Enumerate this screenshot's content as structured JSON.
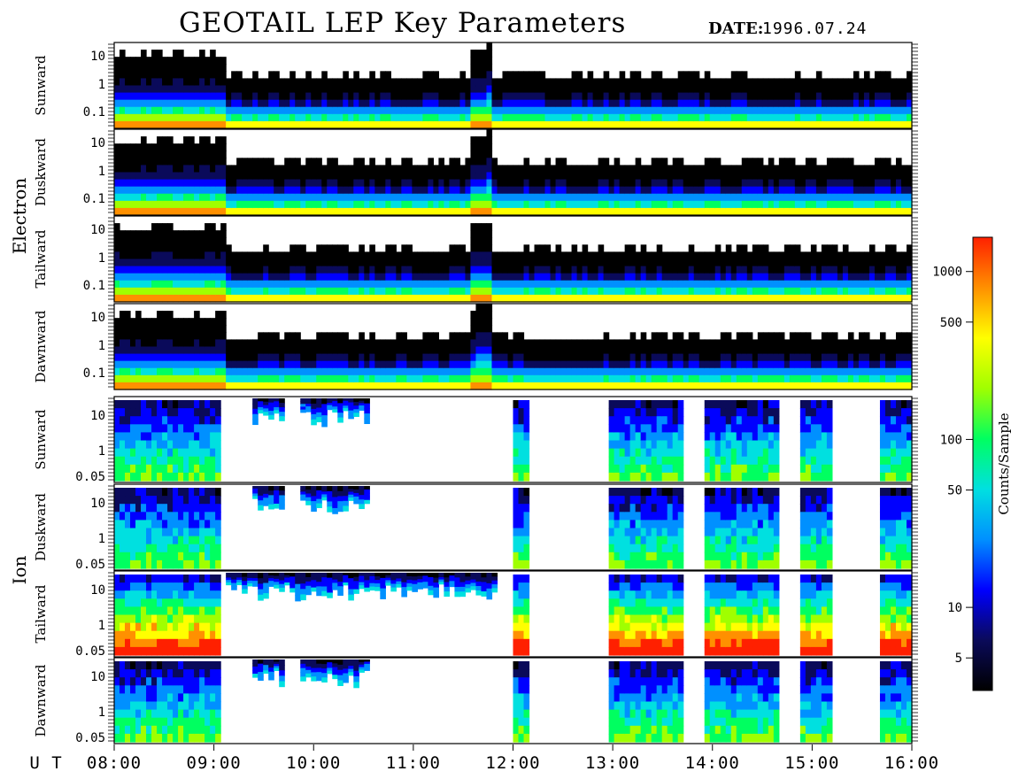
{
  "header": {
    "title": "GEOTAIL LEP Key Parameters",
    "date_label": "DATE:",
    "date_value": "1996.07.24"
  },
  "groups": [
    {
      "label": "Electron",
      "panels": [
        0,
        1,
        2,
        3
      ]
    },
    {
      "label": "Ion",
      "panels": [
        4,
        5,
        6,
        7
      ]
    }
  ],
  "chart_data": {
    "type": "heatmap",
    "x_axis": {
      "unit_label": "U T",
      "range": [
        "08:00",
        "16:00"
      ],
      "ticks": [
        "08:00",
        "09:00",
        "10:00",
        "11:00",
        "12:00",
        "13:00",
        "14:00",
        "15:00",
        "16:00"
      ]
    },
    "panels": [
      {
        "species": "Electron",
        "direction": "Sunward",
        "y_ticks": [
          "10",
          "1",
          "0.1"
        ],
        "y_values": [
          10,
          1,
          0.1
        ],
        "y_scale": "log"
      },
      {
        "species": "Electron",
        "direction": "Duskward",
        "y_ticks": [
          "10",
          "1",
          "0.1"
        ],
        "y_values": [
          10,
          1,
          0.1
        ],
        "y_scale": "log"
      },
      {
        "species": "Electron",
        "direction": "Tailward",
        "y_ticks": [
          "10",
          "1",
          "0.1"
        ],
        "y_values": [
          10,
          1,
          0.1
        ],
        "y_scale": "log"
      },
      {
        "species": "Electron",
        "direction": "Dawnward",
        "y_ticks": [
          "10",
          "1",
          "0.1"
        ],
        "y_values": [
          10,
          1,
          0.1
        ],
        "y_scale": "log"
      },
      {
        "species": "Ion",
        "direction": "Sunward",
        "y_ticks": [
          "10",
          "1",
          "0.05"
        ],
        "y_values": [
          10,
          1,
          0.05
        ],
        "y_scale": "log"
      },
      {
        "species": "Ion",
        "direction": "Duskward",
        "y_ticks": [
          "10",
          "1",
          "0.05"
        ],
        "y_values": [
          10,
          1,
          0.05
        ],
        "y_scale": "log"
      },
      {
        "species": "Ion",
        "direction": "Tailward",
        "y_ticks": [
          "10",
          "1",
          "0.05"
        ],
        "y_values": [
          10,
          1,
          0.05
        ],
        "y_scale": "log"
      },
      {
        "species": "Ion",
        "direction": "Dawnward",
        "y_ticks": [
          "10",
          "1",
          "0.05"
        ],
        "y_values": [
          10,
          1,
          0.05
        ],
        "y_scale": "log"
      }
    ],
    "colorbar": {
      "label": "Counts/Sample",
      "scale": "log",
      "ticks": [
        "1000",
        "500",
        "100",
        "50",
        "10",
        "5"
      ],
      "tick_values": [
        1000,
        500,
        100,
        50,
        10,
        5
      ],
      "colors": [
        "#000000",
        "#0a0a5a",
        "#0000ff",
        "#0090ff",
        "#00e0e0",
        "#00ff60",
        "#a0ff00",
        "#ffff00",
        "#ff9000",
        "#ff2000"
      ]
    }
  }
}
